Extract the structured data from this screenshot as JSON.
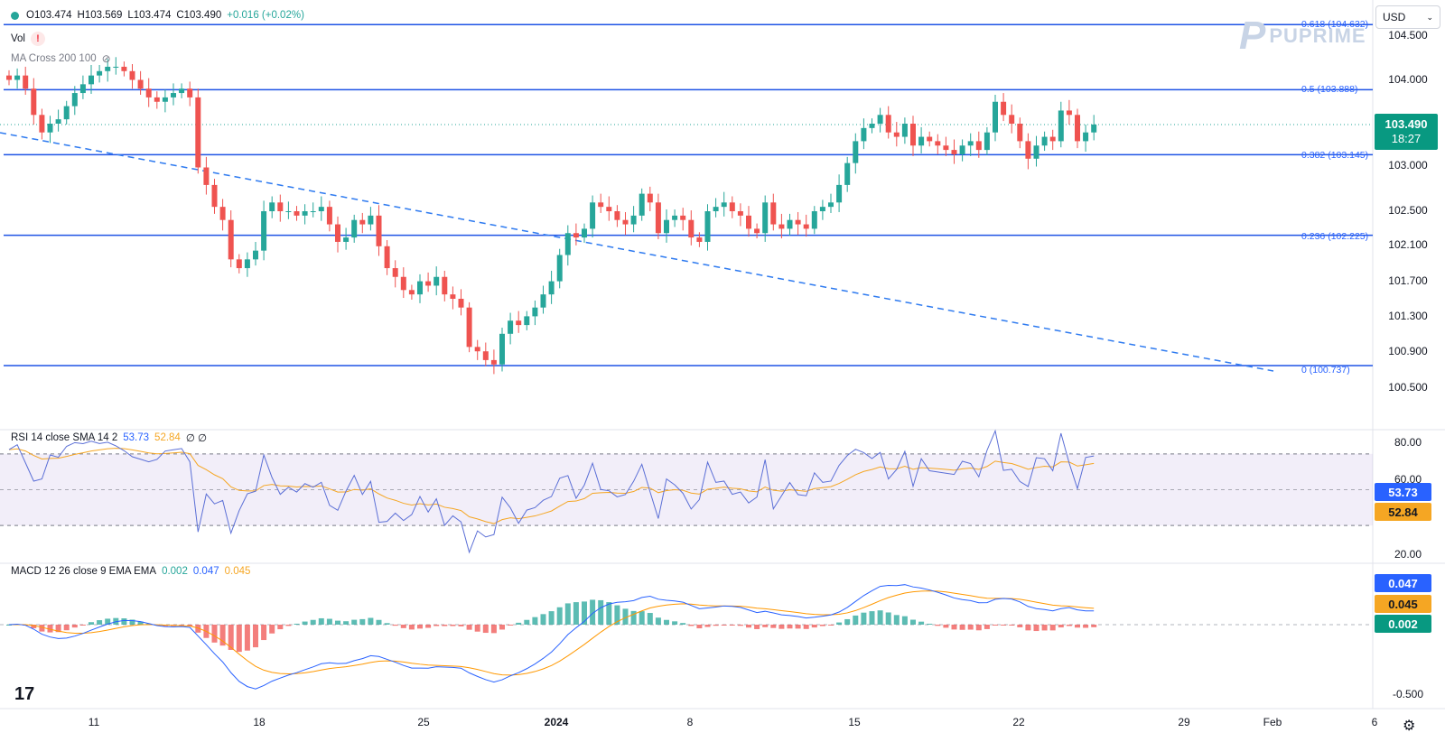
{
  "legend": {
    "open": "O103.474",
    "high": "H103.569",
    "low": "L103.474",
    "close": "C103.490",
    "change": "+0.016 (+0.02%)",
    "vol": "Vol",
    "ma_cross": "MA Cross 200 100",
    "rsi_title": "RSI 14 close SMA 14 2",
    "rsi_value": "53.73",
    "rsi_sma": "52.84",
    "rsi_extra": "∅ ∅",
    "macd_title": "MACD 12 26 close 9 EMA EMA",
    "macd_hist": "0.002",
    "macd_line": "0.047",
    "macd_signal": "0.045"
  },
  "currency": {
    "selected": "USD"
  },
  "logo": {
    "text": "PUPRIME"
  },
  "price_axis": [
    "104.500",
    "104.000",
    "103.000",
    "102.500",
    "102.100",
    "101.700",
    "101.300",
    "100.900",
    "100.500"
  ],
  "current_price": {
    "value": "103.490",
    "countdown": "18:27"
  },
  "rsi_axis": [
    "80.00",
    "60.00",
    "20.00"
  ],
  "rsi_tags": {
    "rsi": "53.73",
    "sma": "52.84"
  },
  "macd_axis": [
    "-0.500"
  ],
  "macd_tags": {
    "macd": "0.047",
    "signal": "0.045",
    "hist": "0.002"
  },
  "x_axis": [
    "11",
    "18",
    "25",
    "2024",
    "8",
    "15",
    "22",
    "29",
    "Feb",
    "6"
  ],
  "fib_levels": [
    {
      "label": "0.618 (104.632)",
      "price": 104.632
    },
    {
      "label": "0.5 (103.888)",
      "price": 103.888
    },
    {
      "label": "0.382 (103.145)",
      "price": 103.145
    },
    {
      "label": "0.236 (102.225)",
      "price": 102.225
    },
    {
      "label": "0 (100.737)",
      "price": 100.737
    }
  ],
  "colors": {
    "up": "#26a69a",
    "down": "#ef5350",
    "fib": "#1e53e5",
    "trend": "#2f7bf0",
    "rsi": "#5b6fd6",
    "rsi_sma": "#f5a623",
    "macd": "#2962ff",
    "signal": "#ff9800"
  },
  "chart_data": {
    "type": "candlestick",
    "series": [
      {
        "name": "price",
        "close": [
          104.0,
          104.05,
          103.9,
          103.6,
          103.4,
          103.5,
          103.55,
          103.7,
          103.85,
          103.95,
          104.05,
          104.1,
          104.15,
          104.15,
          104.1,
          104.0,
          103.9,
          103.8,
          103.75,
          103.8,
          103.85,
          103.9,
          103.8,
          103.0,
          102.8,
          102.55,
          102.4,
          101.95,
          101.85,
          101.95,
          102.05,
          102.5,
          102.6,
          102.5,
          102.5,
          102.45,
          102.5,
          102.5,
          102.55,
          102.35,
          102.15,
          102.2,
          102.4,
          102.35,
          102.45,
          102.1,
          101.85,
          101.75,
          101.6,
          101.55,
          101.7,
          101.65,
          101.75,
          101.55,
          101.5,
          101.4,
          100.95,
          100.9,
          100.8,
          100.75,
          101.1,
          101.25,
          101.2,
          101.3,
          101.4,
          101.55,
          101.7,
          102.0,
          102.25,
          102.2,
          102.3,
          102.6,
          102.55,
          102.5,
          102.4,
          102.35,
          102.45,
          102.7,
          102.6,
          102.25,
          102.4,
          102.45,
          102.4,
          102.2,
          102.15,
          102.5,
          102.55,
          102.6,
          102.5,
          102.45,
          102.3,
          102.25,
          102.6,
          102.35,
          102.3,
          102.4,
          102.35,
          102.3,
          102.5,
          102.55,
          102.6,
          102.8,
          103.05,
          103.3,
          103.45,
          103.5,
          103.6,
          103.4,
          103.35,
          103.5,
          103.25,
          103.35,
          103.3,
          103.25,
          103.2,
          103.15,
          103.25,
          103.3,
          103.2,
          103.4,
          103.75,
          103.6,
          103.5,
          103.3,
          103.1,
          103.25,
          103.35,
          103.3,
          103.65,
          103.6,
          103.3,
          103.4,
          103.49
        ]
      }
    ]
  }
}
